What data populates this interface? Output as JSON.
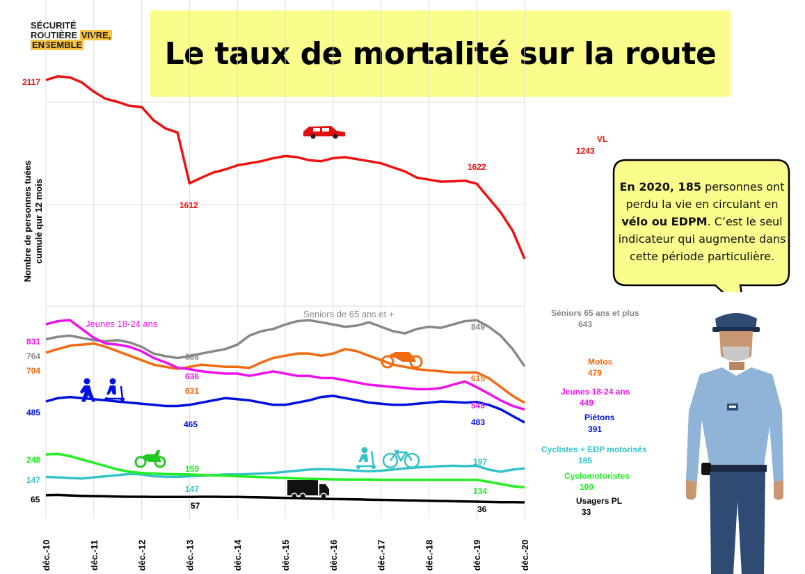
{
  "logo": {
    "line1": "SÉCURITÉ",
    "line2a": "ROUTIÈRE",
    "line2b": "VIVRE,",
    "line3": "ENSEMBLE"
  },
  "title": "Le taux de mortalité sur la route",
  "bubble": {
    "b1": "En 2020, 185",
    "t1": " personnes ont perdu la vie en circulant en ",
    "b2": "vélo ou EDPM",
    "t2": ". C’est le seul indicateur qui augmente dans cette période particulière."
  },
  "colors": {
    "vl": "#ee1111",
    "seniors": "#888888",
    "motos": "#f26a11",
    "jeunes": "#ee11ee",
    "pietons": "#0011dd",
    "cyclistes": "#33c2c8",
    "cyclo": "#22ee22",
    "pl": "#000000"
  },
  "chart_data": {
    "type": "line",
    "ylabel": "Nombre de personnes tuées cumulé qur 12 mois",
    "x_ticks": [
      "déc.-10",
      "déc.-11",
      "déc.-12",
      "déc.-13",
      "déc.-14",
      "déc.-15",
      "déc.-16",
      "déc.-17",
      "déc.-18",
      "déc.-19",
      "déc.-20"
    ],
    "x": [
      "déc.-10",
      "mars-11",
      "juin-11",
      "sept.-11",
      "déc.-11",
      "mars-12",
      "juin-12",
      "sept.-12",
      "déc.-12",
      "mars-13",
      "juin-13",
      "sept.-13",
      "déc.-13",
      "mars-14",
      "juin-14",
      "sept.-14",
      "déc.-14",
      "mars-15",
      "juin-15",
      "sept.-15",
      "déc.-15",
      "mars-16",
      "juin-16",
      "sept.-16",
      "déc.-16",
      "mars-17",
      "juin-17",
      "sept.-17",
      "déc.-17",
      "mars-18",
      "juin-18",
      "sept.-18",
      "déc.-18",
      "mars-19",
      "juin-19",
      "sept.-19",
      "déc.-19",
      "mars-20",
      "juin-20",
      "sept.-20",
      "déc.-20"
    ],
    "series": [
      {
        "name": "VL",
        "key": "vl",
        "panel": "top",
        "values": [
          2117,
          2135,
          2130,
          2105,
          2060,
          2025,
          2010,
          1990,
          1985,
          1920,
          1880,
          1860,
          1612,
          1640,
          1665,
          1680,
          1700,
          1710,
          1720,
          1735,
          1745,
          1740,
          1725,
          1720,
          1735,
          1740,
          1730,
          1720,
          1710,
          1690,
          1670,
          1640,
          1630,
          1620,
          1622,
          1625,
          1610,
          1540,
          1470,
          1380,
          1243
        ],
        "labels": [
          {
            "text": "2117"
          },
          {
            "text": "1612"
          },
          {
            "text": "1622"
          },
          {
            "text": "1243"
          }
        ],
        "end_label": "VL"
      },
      {
        "name": "Seniors de 65 ans et +",
        "key": "seniors",
        "panel": "bottom",
        "values": [
          764,
          775,
          780,
          770,
          760,
          755,
          760,
          750,
          730,
          700,
          688,
          680,
          688,
          700,
          710,
          720,
          740,
          780,
          800,
          810,
          830,
          845,
          849,
          840,
          830,
          820,
          825,
          840,
          820,
          800,
          790,
          810,
          820,
          815,
          830,
          845,
          849,
          820,
          780,
          720,
          643
        ],
        "labels": [
          {
            "text": "764"
          },
          {
            "text": "688"
          },
          {
            "text": "849"
          },
          {
            "text": "643"
          }
        ],
        "end_label": "Séniors 65 ans et plus"
      },
      {
        "name": "Motos",
        "key": "motos",
        "panel": "bottom",
        "values": [
          704,
          720,
          735,
          740,
          745,
          730,
          710,
          690,
          670,
          650,
          640,
          631,
          640,
          650,
          645,
          640,
          640,
          635,
          660,
          680,
          690,
          700,
          700,
          690,
          700,
          720,
          710,
          690,
          670,
          650,
          640,
          630,
          625,
          620,
          615,
          615,
          615,
          590,
          550,
          510,
          479
        ],
        "labels": [
          {
            "text": "704"
          },
          {
            "text": "631"
          },
          {
            "text": "615"
          },
          {
            "text": "479"
          }
        ],
        "end_label": "Motos"
      },
      {
        "name": "Jeunes 18-24 ans",
        "key": "jeunes",
        "panel": "bottom",
        "values": [
          831,
          845,
          850,
          810,
          770,
          745,
          740,
          730,
          710,
          680,
          660,
          636,
          630,
          620,
          615,
          610,
          610,
          600,
          610,
          620,
          610,
          600,
          600,
          590,
          590,
          580,
          570,
          560,
          555,
          550,
          545,
          540,
          540,
          545,
          560,
          575,
          549,
          520,
          490,
          465,
          449
        ],
        "labels": [
          {
            "text": "831"
          },
          {
            "text": "636"
          },
          {
            "text": "549"
          },
          {
            "text": "449"
          }
        ],
        "end_label": "Jeunes 18-24 ans",
        "tag": "Jeunes 18-24 ans"
      },
      {
        "name": "Piétons",
        "key": "pietons",
        "panel": "bottom",
        "values": [
          485,
          500,
          505,
          500,
          495,
          490,
          485,
          480,
          475,
          470,
          465,
          465,
          470,
          480,
          490,
          500,
          495,
          490,
          480,
          470,
          470,
          480,
          490,
          505,
          510,
          500,
          490,
          480,
          475,
          470,
          470,
          475,
          480,
          485,
          483,
          480,
          483,
          470,
          450,
          420,
          391
        ],
        "labels": [
          {
            "text": "485"
          },
          {
            "text": "465"
          },
          {
            "text": "483"
          },
          {
            "text": "391"
          }
        ],
        "end_label": "Piétons"
      },
      {
        "name": "Cyclistes + EDP motorisés",
        "key": "cyclistes",
        "panel": "bottom",
        "values": [
          147,
          145,
          142,
          140,
          145,
          150,
          155,
          160,
          158,
          150,
          148,
          147,
          150,
          152,
          155,
          158,
          158,
          160,
          162,
          165,
          170,
          175,
          180,
          182,
          180,
          178,
          175,
          172,
          175,
          180,
          185,
          190,
          192,
          195,
          197,
          195,
          197,
          180,
          170,
          180,
          185
        ],
        "labels": [
          {
            "text": "147"
          },
          {
            "text": "147"
          },
          {
            "text": "197"
          },
          {
            "text": "185"
          }
        ],
        "end_label": "Cyclistes + EDP motorisés"
      },
      {
        "name": "Cyclomotoristes",
        "key": "cyclo",
        "panel": "bottom",
        "values": [
          248,
          250,
          240,
          225,
          210,
          195,
          180,
          170,
          165,
          162,
          160,
          159,
          158,
          156,
          154,
          152,
          150,
          148,
          146,
          144,
          142,
          140,
          138,
          137,
          136,
          135,
          135,
          135,
          134,
          134,
          134,
          134,
          134,
          134,
          134,
          134,
          134,
          125,
          115,
          105,
          100
        ],
        "labels": [
          {
            "text": "248"
          },
          {
            "text": "159"
          },
          {
            "text": "134"
          },
          {
            "text": "100"
          }
        ],
        "end_label": "Cyclomotoristes"
      },
      {
        "name": "Usagers PL",
        "key": "pl",
        "panel": "bottom",
        "values": [
          65,
          66,
          64,
          62,
          61,
          60,
          59,
          58,
          58,
          57,
          57,
          57,
          57,
          58,
          58,
          57,
          57,
          56,
          55,
          54,
          53,
          52,
          50,
          49,
          48,
          47,
          46,
          45,
          44,
          43,
          42,
          41,
          40,
          39,
          38,
          37,
          36,
          35,
          34,
          34,
          33
        ],
        "labels": [
          {
            "text": "65"
          },
          {
            "text": "57"
          },
          {
            "text": "36"
          },
          {
            "text": "33"
          }
        ],
        "end_label": "Usagers PL"
      }
    ],
    "annotation": "Seniors de 65 ans et +"
  }
}
